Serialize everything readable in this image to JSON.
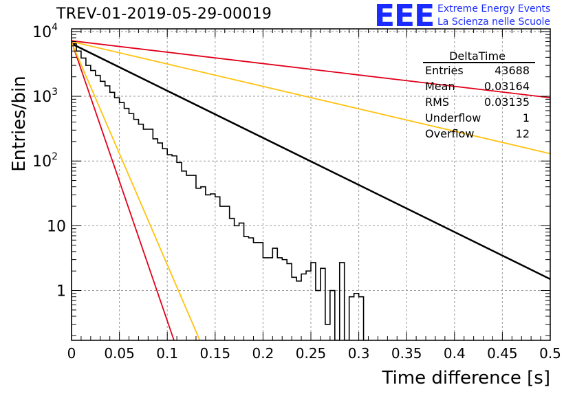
{
  "header": {
    "title": "TREV-01-2019-05-29-00019",
    "logo_text": "EEE",
    "logo_line1": "Extreme Energy Events",
    "logo_line2": "La Scienza nelle Scuole"
  },
  "stats": {
    "title": "DeltaTime",
    "rows": [
      {
        "name": "Entries",
        "value": "43688"
      },
      {
        "name": "Mean",
        "value": "0.03164"
      },
      {
        "name": "RMS",
        "value": "0.03135"
      },
      {
        "name": "Underflow",
        "value": "1"
      },
      {
        "name": "Overflow",
        "value": "12"
      }
    ]
  },
  "colors": {
    "red": "#e0001a",
    "yellow": "#ffc20e",
    "black": "#000000",
    "logo_blue": "#1a2bff"
  },
  "chart_data": {
    "type": "line",
    "title": "TREV-01-2019-05-29-00019",
    "xlabel": "Time difference [s]",
    "ylabel": "Entries/bin",
    "xlim": [
      0,
      0.5
    ],
    "ylim": [
      0.17,
      11000
    ],
    "y_scale": "log",
    "grid": true,
    "x_ticks": [
      "0",
      "0.05",
      "0.1",
      "0.15",
      "0.2",
      "0.25",
      "0.3",
      "0.35",
      "0.4",
      "0.45",
      "0.5"
    ],
    "x_tick_values": [
      0,
      0.05,
      0.1,
      0.15,
      0.2,
      0.25,
      0.3,
      0.35,
      0.4,
      0.45,
      0.5
    ],
    "y_ticks": [
      {
        "value": 10000,
        "base": "10",
        "exp": "4"
      },
      {
        "value": 1000,
        "base": "10",
        "exp": "3"
      },
      {
        "value": 100,
        "base": "10",
        "exp": "2"
      },
      {
        "value": 10,
        "base": "10",
        "exp": ""
      },
      {
        "value": 1,
        "base": "1",
        "exp": ""
      }
    ],
    "histogram": {
      "name": "DeltaTime",
      "bin_width": 0.005,
      "x_start": 0,
      "values": [
        6500,
        5000,
        3900,
        3000,
        2500,
        2100,
        1700,
        1450,
        1150,
        950,
        800,
        650,
        540,
        440,
        370,
        310,
        310,
        220,
        190,
        155,
        125,
        120,
        95,
        70,
        60,
        60,
        38,
        40,
        30,
        31,
        28,
        20,
        20,
        13,
        10,
        11,
        6.8,
        6.5,
        5.5,
        5.5,
        3.2,
        3.2,
        4.5,
        3.2,
        3.0,
        2.6,
        1.6,
        1.4,
        1.8,
        2.0,
        2.7,
        1.0,
        2.2,
        0.3,
        1.0,
        0.1,
        2.7,
        0.1,
        0.8,
        0.9,
        0.8,
        0.1
      ],
      "color": "#000000"
    },
    "lines": [
      {
        "x": [
          0,
          0.5
        ],
        "y": [
          6500,
          1.5
        ],
        "color": "#000000",
        "width": 2.5
      },
      {
        "x": [
          0,
          0.5
        ],
        "y": [
          7200,
          950
        ],
        "color": "#e0001a",
        "width": 1.8
      },
      {
        "x": [
          0,
          0.5
        ],
        "y": [
          7000,
          130
        ],
        "color": "#ffc20e",
        "width": 1.8
      },
      {
        "x": [
          0,
          0.107
        ],
        "y": [
          7000,
          0.17
        ],
        "color": "#e0001a",
        "width": 1.8
      },
      {
        "x": [
          0,
          0.134
        ],
        "y": [
          6800,
          0.17
        ],
        "color": "#ffc20e",
        "width": 1.8
      }
    ]
  }
}
